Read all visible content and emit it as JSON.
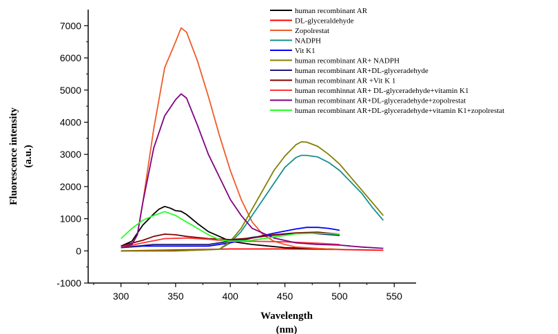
{
  "chart_data": {
    "type": "line",
    "xlabel": "Wavelength",
    "xlabel_unit": "(nm)",
    "ylabel": "Fluorescence intensity",
    "ylabel_unit": "(a.u.)",
    "xlim": [
      270,
      570
    ],
    "ylim": [
      -1000,
      7500
    ],
    "xticks": [
      300,
      350,
      400,
      450,
      500,
      550
    ],
    "yticks": [
      -1000,
      0,
      1000,
      2000,
      3000,
      4000,
      5000,
      6000,
      7000
    ],
    "grid": false,
    "legend_position": "top-right",
    "series": [
      {
        "name": "human recombinant AR",
        "color": "#000000",
        "x": [
          300,
          310,
          320,
          330,
          335,
          340,
          345,
          350,
          355,
          360,
          370,
          380,
          400,
          420,
          450,
          480,
          500
        ],
        "y": [
          150,
          300,
          800,
          1150,
          1300,
          1380,
          1330,
          1250,
          1230,
          1130,
          850,
          600,
          300,
          200,
          100,
          70,
          50
        ]
      },
      {
        "name": "DL-glyceraldehyde",
        "color": "#ff0000",
        "x": [
          300,
          350,
          400,
          450,
          500,
          540
        ],
        "y": [
          0,
          30,
          60,
          60,
          40,
          20
        ]
      },
      {
        "name": "Zopolrestat",
        "color": "#f05a28",
        "x": [
          300,
          310,
          315,
          320,
          330,
          340,
          350,
          355,
          360,
          370,
          380,
          390,
          400,
          410,
          420,
          430,
          440,
          450,
          460,
          470,
          480,
          490,
          500
        ],
        "y": [
          100,
          200,
          500,
          1500,
          3800,
          5700,
          6500,
          6930,
          6800,
          5900,
          4800,
          3600,
          2500,
          1600,
          900,
          500,
          300,
          200,
          120,
          100,
          80,
          60,
          50
        ]
      },
      {
        "name": "NADPH",
        "color": "#168e8e",
        "x": [
          300,
          350,
          390,
          400,
          410,
          420,
          430,
          440,
          450,
          460,
          465,
          470,
          480,
          490,
          500,
          510,
          520,
          530,
          540
        ],
        "y": [
          0,
          0,
          50,
          250,
          600,
          1100,
          1600,
          2100,
          2600,
          2900,
          2970,
          2970,
          2920,
          2750,
          2500,
          2150,
          1800,
          1350,
          950
        ]
      },
      {
        "name": "Vit K1",
        "color": "#0000ff",
        "x": [
          300,
          320,
          350,
          380,
          400,
          420,
          440,
          460,
          470,
          480,
          490,
          500
        ],
        "y": [
          100,
          150,
          150,
          150,
          250,
          400,
          550,
          680,
          730,
          730,
          700,
          640
        ]
      },
      {
        "name": "human recombinant AR+ NADPH",
        "color": "#808000",
        "x": [
          300,
          350,
          390,
          400,
          410,
          420,
          430,
          440,
          450,
          460,
          465,
          470,
          480,
          490,
          500,
          510,
          520,
          530,
          540
        ],
        "y": [
          0,
          0,
          50,
          300,
          700,
          1300,
          1900,
          2500,
          2950,
          3300,
          3390,
          3380,
          3250,
          3000,
          2700,
          2300,
          1900,
          1500,
          1100
        ]
      },
      {
        "name": "human recombinant AR+DL-glyceradehyde",
        "color": "#1a1a80",
        "x": [
          300,
          330,
          350,
          380,
          400,
          420,
          450,
          470,
          500
        ],
        "y": [
          100,
          200,
          200,
          200,
          300,
          420,
          520,
          560,
          480
        ]
      },
      {
        "name": "human recombinant AR +Vit K 1",
        "color": "#800000",
        "x": [
          300,
          320,
          330,
          340,
          350,
          360,
          380,
          400,
          420,
          440,
          460,
          480,
          500
        ],
        "y": [
          150,
          330,
          450,
          520,
          500,
          450,
          380,
          350,
          400,
          500,
          560,
          580,
          520
        ]
      },
      {
        "name": "human recomhinnat AR+ DL-glyceradehyde+vitamin K1",
        "color": "#ff3333",
        "x": [
          300,
          320,
          340,
          360,
          380,
          400,
          420,
          450,
          480,
          500
        ],
        "y": [
          100,
          250,
          380,
          400,
          360,
          300,
          300,
          280,
          240,
          200
        ]
      },
      {
        "name": "human recombinant AR+DL-glyceradehyde+zopolrestat",
        "color": "#800080",
        "x": [
          300,
          310,
          315,
          320,
          330,
          340,
          345,
          350,
          355,
          360,
          370,
          380,
          390,
          400,
          410,
          420,
          440,
          460,
          480,
          500,
          520,
          540
        ],
        "y": [
          100,
          200,
          500,
          1500,
          3200,
          4200,
          4450,
          4700,
          4880,
          4750,
          3900,
          3000,
          2300,
          1600,
          1100,
          700,
          400,
          250,
          200,
          180,
          120,
          80
        ]
      },
      {
        "name": "human recombinant AR+DL-glyceradehyde+vitamin K1+zopolrestat",
        "color": "#22ff22",
        "x": [
          300,
          310,
          320,
          330,
          340,
          350,
          360,
          370,
          380,
          390,
          400,
          420,
          440,
          460,
          480,
          500
        ],
        "y": [
          380,
          700,
          950,
          1100,
          1220,
          1100,
          900,
          700,
          500,
          350,
          300,
          330,
          430,
          530,
          550,
          520
        ]
      }
    ]
  }
}
